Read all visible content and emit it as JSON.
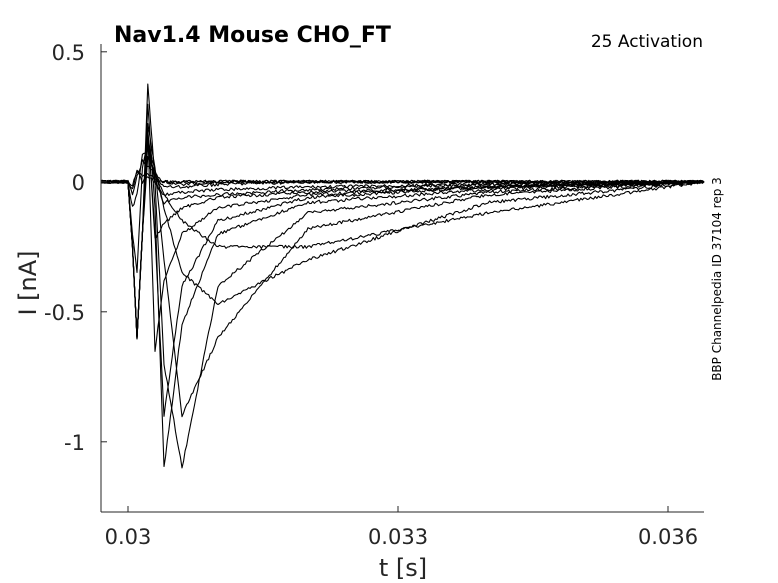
{
  "chart_data": {
    "type": "line",
    "title": "Nav1.4  Mouse  CHO_FT",
    "subtitle": "25  Activation",
    "side_label": "BBP Channelpedia ID 37104 rep 3",
    "xlabel": "t [s]",
    "ylabel": "I [nA]",
    "xlim": [
      0.0297,
      0.0364
    ],
    "ylim": [
      -1.27,
      0.53
    ],
    "xticks": [
      0.03,
      0.033,
      0.036
    ],
    "xtick_labels": [
      "0.03",
      "0.033",
      "0.036"
    ],
    "yticks": [
      0.5,
      0,
      -0.5,
      -1
    ],
    "ytick_labels": [
      "0.5",
      "0",
      "-0.5",
      "-1"
    ],
    "grid": false,
    "legend": "none",
    "line_color": "#000000",
    "series": [
      {
        "x": [
          0.0297,
          0.03,
          0.03005,
          0.0301,
          0.03016,
          0.03022,
          0.0303,
          0.0304,
          0.0306,
          0.031,
          0.032,
          0.034,
          0.0364
        ],
        "y": [
          0,
          0,
          -0.02,
          0.05,
          0.0,
          0.02,
          0.0,
          0.0,
          0.0,
          0.0,
          0.0,
          0.0,
          0.0
        ]
      },
      {
        "x": [
          0.0297,
          0.03,
          0.03005,
          0.0301,
          0.03016,
          0.03022,
          0.0303,
          0.0304,
          0.0306,
          0.031,
          0.032,
          0.034,
          0.0364
        ],
        "y": [
          0,
          0,
          -0.03,
          0.04,
          0.02,
          0.03,
          0.01,
          0.0,
          0.0,
          0.0,
          0.0,
          0.0,
          0.0
        ]
      },
      {
        "x": [
          0.0297,
          0.03,
          0.03005,
          0.0301,
          0.03016,
          0.03022,
          0.0303,
          0.0304,
          0.0306,
          0.031,
          0.032,
          0.034,
          0.0364
        ],
        "y": [
          0,
          0,
          -0.05,
          0.02,
          0.08,
          0.06,
          0.03,
          0.0,
          -0.01,
          0.0,
          0.0,
          0.0,
          0.0
        ]
      },
      {
        "x": [
          0.0297,
          0.03,
          0.03005,
          0.0301,
          0.03016,
          0.03022,
          0.0303,
          0.0304,
          0.0306,
          0.031,
          0.032,
          0.034,
          0.0364
        ],
        "y": [
          0,
          0,
          -0.1,
          -0.05,
          0.1,
          0.12,
          0.02,
          -0.02,
          -0.02,
          -0.01,
          0.0,
          0.0,
          0.0
        ]
      },
      {
        "x": [
          0.0297,
          0.03,
          0.03005,
          0.0301,
          0.03016,
          0.03022,
          0.0303,
          0.0304,
          0.0306,
          0.031,
          0.032,
          0.034,
          0.0364
        ],
        "y": [
          0,
          0,
          -0.2,
          -0.35,
          0.05,
          0.15,
          0.0,
          -0.05,
          -0.04,
          -0.03,
          -0.02,
          -0.01,
          0.0
        ]
      },
      {
        "x": [
          0.0297,
          0.03,
          0.03005,
          0.0301,
          0.03016,
          0.03022,
          0.0303,
          0.0304,
          0.0306,
          0.031,
          0.032,
          0.034,
          0.0364
        ],
        "y": [
          0,
          0,
          -0.25,
          -0.6,
          -0.2,
          0.18,
          0.0,
          -0.08,
          -0.06,
          -0.05,
          -0.03,
          -0.01,
          0.0
        ]
      },
      {
        "x": [
          0.0297,
          0.03,
          0.03005,
          0.0301,
          0.03016,
          0.03022,
          0.0303,
          0.0304,
          0.0306,
          0.031,
          0.032,
          0.034,
          0.0364
        ],
        "y": [
          0,
          0,
          -0.25,
          -0.6,
          -0.2,
          0.2,
          -0.22,
          -0.16,
          -0.1,
          -0.06,
          -0.04,
          -0.02,
          0.0
        ]
      },
      {
        "x": [
          0.0297,
          0.03,
          0.03005,
          0.0301,
          0.03016,
          0.03022,
          0.0303,
          0.0304,
          0.0306,
          0.031,
          0.032,
          0.034,
          0.0364
        ],
        "y": [
          0,
          0,
          -0.25,
          -0.6,
          -0.2,
          0.2,
          -0.65,
          -0.38,
          -0.2,
          -0.1,
          -0.05,
          -0.02,
          0.0
        ]
      },
      {
        "x": [
          0.0297,
          0.03,
          0.03005,
          0.0301,
          0.03016,
          0.03022,
          0.0303,
          0.0304,
          0.0306,
          0.031,
          0.032,
          0.034,
          0.0364
        ],
        "y": [
          0,
          0,
          -0.25,
          -0.6,
          -0.2,
          0.2,
          -0.2,
          -0.9,
          -0.4,
          -0.15,
          -0.06,
          -0.02,
          0.0
        ]
      },
      {
        "x": [
          0.0297,
          0.03,
          0.03005,
          0.0301,
          0.03016,
          0.03022,
          0.0303,
          0.0304,
          0.0306,
          0.031,
          0.032,
          0.034,
          0.0364
        ],
        "y": [
          0,
          0,
          -0.25,
          -0.6,
          -0.2,
          0.3,
          -0.1,
          -1.1,
          -0.55,
          -0.2,
          -0.08,
          -0.03,
          0.0
        ]
      },
      {
        "x": [
          0.0297,
          0.03,
          0.03005,
          0.0301,
          0.03016,
          0.03022,
          0.0303,
          0.0304,
          0.0306,
          0.031,
          0.032,
          0.034,
          0.0364
        ],
        "y": [
          0,
          0,
          -0.25,
          -0.6,
          -0.2,
          0.38,
          0.0,
          -0.7,
          -1.1,
          -0.4,
          -0.12,
          -0.04,
          0.0
        ]
      },
      {
        "x": [
          0.0297,
          0.03,
          0.03005,
          0.0301,
          0.03016,
          0.03022,
          0.0303,
          0.0304,
          0.0306,
          0.031,
          0.032,
          0.034,
          0.0364
        ],
        "y": [
          0,
          0,
          -0.25,
          -0.6,
          -0.2,
          0.22,
          0.05,
          -0.3,
          -0.9,
          -0.6,
          -0.18,
          -0.05,
          0.0
        ]
      },
      {
        "x": [
          0.0297,
          0.03,
          0.03005,
          0.0301,
          0.03016,
          0.03022,
          0.0303,
          0.0304,
          0.0306,
          0.031,
          0.032,
          0.034,
          0.0364
        ],
        "y": [
          0,
          0,
          -0.25,
          -0.6,
          -0.2,
          0.15,
          0.05,
          -0.1,
          -0.35,
          -0.47,
          -0.3,
          -0.08,
          0.0
        ]
      },
      {
        "x": [
          0.0297,
          0.03,
          0.03005,
          0.0301,
          0.03016,
          0.03022,
          0.0303,
          0.0304,
          0.0306,
          0.031,
          0.032,
          0.034,
          0.0364
        ],
        "y": [
          0,
          0,
          -0.25,
          -0.6,
          -0.2,
          0.1,
          0.03,
          -0.05,
          -0.15,
          -0.25,
          -0.25,
          -0.12,
          0.0
        ]
      }
    ]
  }
}
